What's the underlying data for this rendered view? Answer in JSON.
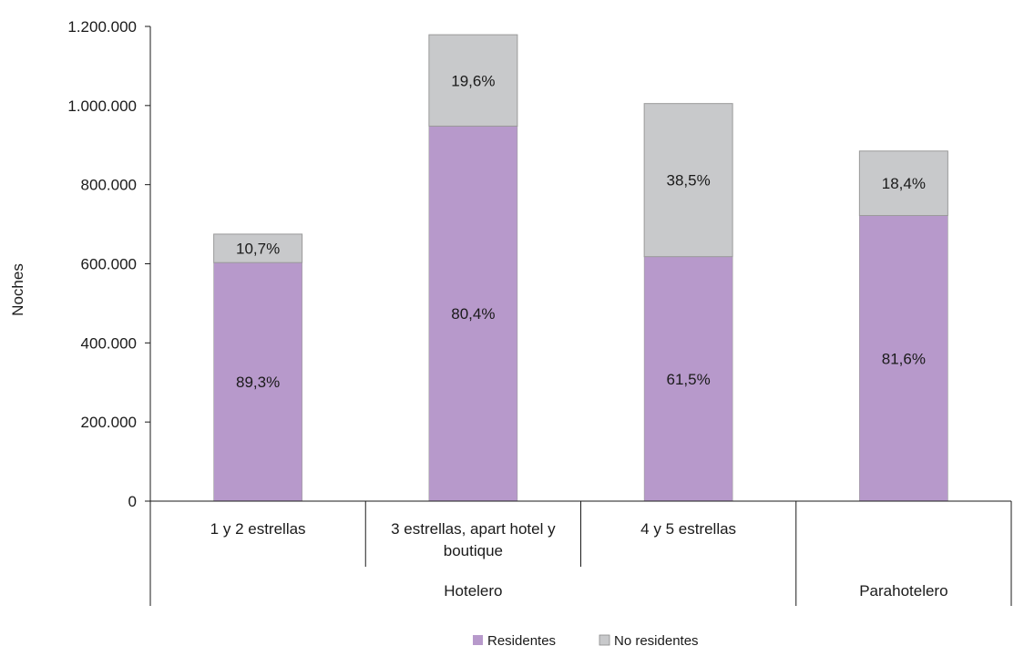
{
  "chart_data": {
    "type": "bar",
    "stacked": true,
    "ylabel": "Noches",
    "ylim": [
      0,
      1200000
    ],
    "yticks": [
      0,
      200000,
      400000,
      600000,
      800000,
      1000000,
      1200000
    ],
    "ytick_labels": [
      "0",
      "200.000",
      "400.000",
      "600.000",
      "800.000",
      "1.000.000",
      "1.200.000"
    ],
    "categories": [
      "1 y 2 estrellas",
      "3 estrellas, apart hotel y boutique",
      "4 y 5 estrellas",
      ""
    ],
    "category_label_lines": [
      [
        "1 y 2 estrellas"
      ],
      [
        "3 estrellas, apart hotel y",
        "boutique"
      ],
      [
        "4 y 5 estrellas"
      ],
      []
    ],
    "groups": [
      {
        "label": "Hotelero",
        "span": [
          0,
          2
        ]
      },
      {
        "label": "Parahotelero",
        "span": [
          3,
          3
        ]
      }
    ],
    "series": [
      {
        "name": "Residentes",
        "color": "#b799cb",
        "values": [
          603000,
          948000,
          618000,
          722000
        ],
        "labels": [
          "89,3%",
          "80,4%",
          "61,5%",
          "81,6%"
        ]
      },
      {
        "name": "No residentes",
        "color": "#c8c9cb",
        "values": [
          72000,
          231000,
          387000,
          163000
        ],
        "labels": [
          "10,7%",
          "19,6%",
          "38,5%",
          "18,4%"
        ]
      }
    ],
    "grid": false,
    "legend_position": "bottom"
  }
}
